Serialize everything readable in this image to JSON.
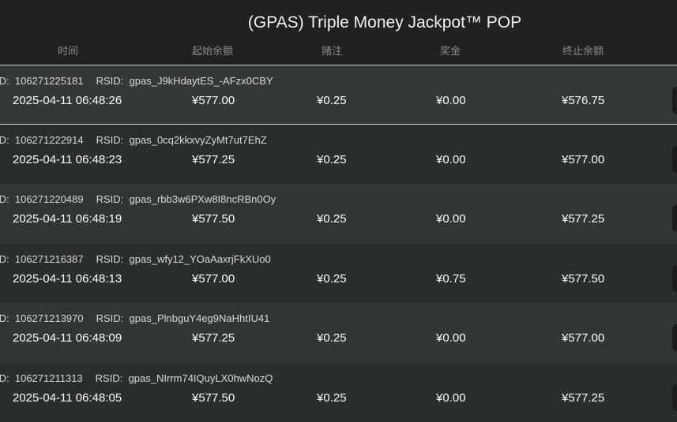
{
  "title": "(GPAS) Triple Money Jackpot™ POP",
  "columns": [
    "时间",
    "起始余额",
    "赌注",
    "奖金",
    "终止余额"
  ],
  "id_label": "ID:",
  "rsid_label": "RSID:",
  "rows": [
    {
      "id": "106271225181",
      "rsid": "gpas_J9kHdaytES_-AFzx0CBY",
      "time": "2025-04-11 06:48:26",
      "start": "¥577.00",
      "bet": "¥0.25",
      "prize": "¥0.00",
      "end": "¥576.75",
      "selected": true
    },
    {
      "id": "106271222914",
      "rsid": "gpas_0cq2kkxvyZyMt7ut7EhZ",
      "time": "2025-04-11 06:48:23",
      "start": "¥577.25",
      "bet": "¥0.25",
      "prize": "¥0.00",
      "end": "¥577.00"
    },
    {
      "id": "106271220489",
      "rsid": "gpas_rbb3w6PXw8I8ncRBn0Oy",
      "time": "2025-04-11 06:48:19",
      "start": "¥577.50",
      "bet": "¥0.25",
      "prize": "¥0.00",
      "end": "¥577.25"
    },
    {
      "id": "106271216387",
      "rsid": "gpas_wfy12_YOaAaxrjFkXUo0",
      "time": "2025-04-11 06:48:13",
      "start": "¥577.00",
      "bet": "¥0.25",
      "prize": "¥0.75",
      "end": "¥577.50"
    },
    {
      "id": "106271213970",
      "rsid": "gpas_PlnbguY4eg9NaHhtIU41",
      "time": "2025-04-11 06:48:09",
      "start": "¥577.25",
      "bet": "¥0.25",
      "prize": "¥0.00",
      "end": "¥577.00"
    },
    {
      "id": "106271211313",
      "rsid": "gpas_NIrrm74IQuyLX0hwNozQ",
      "time": "2025-04-11 06:48:05",
      "start": "¥577.50",
      "bet": "¥0.25",
      "prize": "¥0.00",
      "end": "¥577.25"
    }
  ]
}
